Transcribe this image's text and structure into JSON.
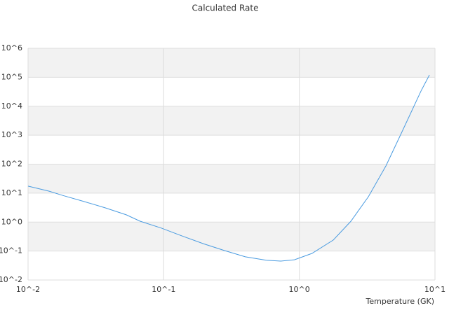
{
  "chart_data": {
    "type": "line",
    "title": "Calculated Rate",
    "x_label": "Temperature (GK)",
    "x": [
      0.01,
      0.0143,
      0.018,
      0.026,
      0.037,
      0.053,
      0.067,
      0.096,
      0.137,
      0.196,
      0.28,
      0.4,
      0.57,
      0.73,
      0.92,
      1.24,
      1.78,
      2.4,
      3.23,
      4.35,
      5.85,
      7.9,
      9.1
    ],
    "series": [
      {
        "color": "#4a9be0",
        "values": [
          17.4,
          11.7,
          8.3,
          5.1,
          3.1,
          1.78,
          1.07,
          0.62,
          0.33,
          0.18,
          0.104,
          0.063,
          0.048,
          0.045,
          0.05,
          0.083,
          0.24,
          1.07,
          7.5,
          87,
          1660,
          34000,
          120000
        ]
      }
    ],
    "x_log": true,
    "y_log": true,
    "xlim": [
      0.01,
      10
    ],
    "ylim": [
      0.01,
      1000000
    ],
    "xticks": [
      {
        "value": 0.01,
        "label": "10^-2"
      },
      {
        "value": 0.1,
        "label": "10^-1"
      },
      {
        "value": 1,
        "label": "10^0"
      },
      {
        "value": 10,
        "label": "10^1"
      }
    ],
    "yticks": [
      {
        "value": 0.01,
        "label": "10^-2"
      },
      {
        "value": 0.1,
        "label": "10^-1"
      },
      {
        "value": 1,
        "label": "10^0"
      },
      {
        "value": 10,
        "label": "10^1"
      },
      {
        "value": 100,
        "label": "10^2"
      },
      {
        "value": 1000,
        "label": "10^3"
      },
      {
        "value": 10000,
        "label": "10^4"
      },
      {
        "value": 100000,
        "label": "10^5"
      },
      {
        "value": 1000000,
        "label": "10^6"
      }
    ],
    "band_color": "#f2f2f2",
    "grid": true
  }
}
